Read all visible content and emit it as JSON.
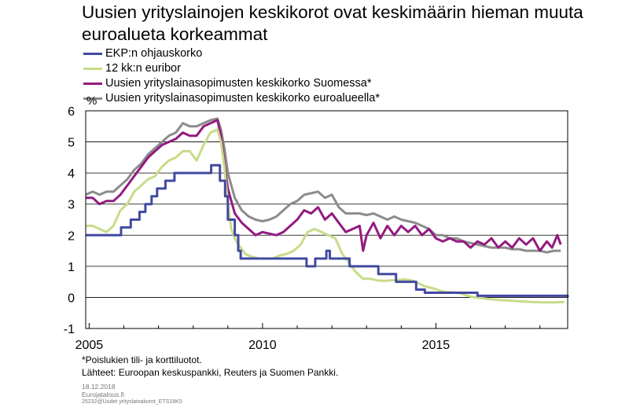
{
  "chart_data": {
    "type": "line",
    "title": "Uusien yrityslainojen keskikorot ovat keskimäärin hieman muuta euroalueta korkeammat",
    "ylabel": "%",
    "xlabel": "",
    "ylim": [
      -1,
      6
    ],
    "yticks": [
      "6",
      "5",
      "4",
      "3",
      "2",
      "1",
      "0",
      "-1"
    ],
    "xlim": [
      2004.9,
      2018.8
    ],
    "xticks": [
      "2005",
      "2010",
      "2015"
    ],
    "grid": "horizontal",
    "legend_position": "top-left",
    "series": [
      {
        "name": "EKP:n ohjauskorko",
        "color": "#414aa0",
        "step": true,
        "x": [
          2004.9,
          2005.92,
          2006.2,
          2006.45,
          2006.62,
          2006.8,
          2006.96,
          2007.2,
          2007.46,
          2008.52,
          2008.77,
          2008.92,
          2009.0,
          2009.2,
          2009.3,
          2009.37,
          2011.27,
          2011.52,
          2011.84,
          2011.94,
          2012.51,
          2013.34,
          2013.85,
          2014.43,
          2014.68,
          2016.2,
          2018.8
        ],
        "y": [
          2.0,
          2.25,
          2.5,
          2.75,
          3.0,
          3.25,
          3.5,
          3.75,
          4.0,
          4.25,
          3.75,
          3.25,
          2.5,
          2.0,
          1.5,
          1.25,
          1.0,
          1.25,
          1.5,
          1.25,
          1.0,
          0.75,
          0.5,
          0.25,
          0.15,
          0.05,
          0.0
        ]
      },
      {
        "name": "12 kk:n euribor",
        "color": "#c7dc8a",
        "x": [
          2004.9,
          2005.1,
          2005.3,
          2005.5,
          2005.7,
          2005.9,
          2006.1,
          2006.3,
          2006.5,
          2006.7,
          2006.9,
          2007.1,
          2007.3,
          2007.5,
          2007.7,
          2007.9,
          2008.1,
          2008.3,
          2008.5,
          2008.7,
          2008.8,
          2008.9,
          2009.0,
          2009.1,
          2009.2,
          2009.3,
          2009.5,
          2009.7,
          2009.9,
          2010.1,
          2010.3,
          2010.5,
          2010.7,
          2010.9,
          2011.1,
          2011.3,
          2011.5,
          2011.7,
          2011.9,
          2012.1,
          2012.3,
          2012.5,
          2012.7,
          2012.9,
          2013.1,
          2013.3,
          2013.5,
          2013.7,
          2013.9,
          2014.1,
          2014.3,
          2014.5,
          2014.7,
          2014.9,
          2015.1,
          2015.3,
          2015.5,
          2015.7,
          2015.9,
          2016.1,
          2016.3,
          2016.5,
          2016.7,
          2016.9,
          2017.2,
          2017.5,
          2017.8,
          2018.1,
          2018.4,
          2018.7
        ],
        "y": [
          2.3,
          2.3,
          2.2,
          2.1,
          2.3,
          2.8,
          3.0,
          3.4,
          3.6,
          3.8,
          3.9,
          4.2,
          4.4,
          4.5,
          4.7,
          4.7,
          4.4,
          4.9,
          5.3,
          5.4,
          5.0,
          4.2,
          3.0,
          2.2,
          1.9,
          1.7,
          1.4,
          1.3,
          1.25,
          1.25,
          1.25,
          1.35,
          1.4,
          1.5,
          1.7,
          2.1,
          2.2,
          2.1,
          2.0,
          1.9,
          1.4,
          1.1,
          0.8,
          0.6,
          0.6,
          0.55,
          0.53,
          0.55,
          0.56,
          0.58,
          0.55,
          0.45,
          0.35,
          0.3,
          0.22,
          0.17,
          0.16,
          0.13,
          0.06,
          0.0,
          -0.02,
          -0.05,
          -0.07,
          -0.09,
          -0.11,
          -0.13,
          -0.15,
          -0.16,
          -0.16,
          -0.15
        ]
      },
      {
        "name": "Uusien yrityslainasopimusten keskikorko Suomessa*",
        "color": "#931b7f",
        "x": [
          2004.9,
          2005.1,
          2005.3,
          2005.5,
          2005.7,
          2005.9,
          2006.1,
          2006.3,
          2006.5,
          2006.7,
          2006.9,
          2007.1,
          2007.3,
          2007.5,
          2007.7,
          2007.9,
          2008.1,
          2008.3,
          2008.5,
          2008.7,
          2008.8,
          2008.9,
          2009.0,
          2009.2,
          2009.4,
          2009.6,
          2009.8,
          2010.0,
          2010.2,
          2010.4,
          2010.6,
          2010.8,
          2011.0,
          2011.2,
          2011.4,
          2011.6,
          2011.8,
          2012.0,
          2012.2,
          2012.4,
          2012.6,
          2012.8,
          2012.9,
          2013.0,
          2013.2,
          2013.4,
          2013.6,
          2013.8,
          2014.0,
          2014.2,
          2014.4,
          2014.6,
          2014.8,
          2015.0,
          2015.2,
          2015.4,
          2015.6,
          2015.8,
          2016.0,
          2016.2,
          2016.4,
          2016.6,
          2016.8,
          2017.0,
          2017.2,
          2017.4,
          2017.6,
          2017.8,
          2018.0,
          2018.2,
          2018.35,
          2018.5,
          2018.6
        ],
        "y": [
          3.2,
          3.2,
          3.0,
          3.1,
          3.1,
          3.3,
          3.6,
          3.9,
          4.2,
          4.5,
          4.7,
          4.9,
          5.0,
          5.1,
          5.3,
          5.2,
          5.2,
          5.5,
          5.6,
          5.7,
          5.2,
          4.3,
          3.5,
          2.7,
          2.4,
          2.2,
          2.0,
          2.1,
          2.05,
          2.0,
          2.1,
          2.3,
          2.5,
          2.8,
          2.7,
          2.9,
          2.5,
          2.7,
          2.4,
          2.1,
          2.2,
          2.3,
          1.5,
          2.0,
          2.4,
          1.9,
          2.3,
          2.0,
          2.3,
          2.1,
          2.3,
          2.0,
          2.2,
          1.9,
          1.8,
          1.9,
          1.8,
          1.8,
          1.6,
          1.8,
          1.7,
          1.9,
          1.6,
          1.8,
          1.6,
          1.9,
          1.7,
          1.9,
          1.5,
          1.8,
          1.6,
          2.0,
          1.7
        ]
      },
      {
        "name": "Uusien yrityslainasopimusten keskikorko euroalueella*",
        "color": "#8c8c8c",
        "x": [
          2004.9,
          2005.1,
          2005.3,
          2005.5,
          2005.7,
          2005.9,
          2006.1,
          2006.3,
          2006.5,
          2006.7,
          2006.9,
          2007.1,
          2007.3,
          2007.5,
          2007.7,
          2007.9,
          2008.1,
          2008.3,
          2008.5,
          2008.7,
          2008.8,
          2008.9,
          2009.0,
          2009.2,
          2009.4,
          2009.6,
          2009.8,
          2010.0,
          2010.2,
          2010.4,
          2010.6,
          2010.8,
          2011.0,
          2011.2,
          2011.4,
          2011.6,
          2011.8,
          2012.0,
          2012.2,
          2012.4,
          2012.6,
          2012.8,
          2013.0,
          2013.2,
          2013.4,
          2013.6,
          2013.8,
          2014.0,
          2014.2,
          2014.4,
          2014.6,
          2014.8,
          2015.0,
          2015.2,
          2015.4,
          2015.6,
          2015.8,
          2016.0,
          2016.2,
          2016.4,
          2016.6,
          2016.8,
          2017.0,
          2017.2,
          2017.4,
          2017.6,
          2017.8,
          2018.0,
          2018.2,
          2018.4,
          2018.6
        ],
        "y": [
          3.3,
          3.4,
          3.3,
          3.4,
          3.4,
          3.6,
          3.8,
          4.1,
          4.3,
          4.6,
          4.8,
          5.0,
          5.2,
          5.3,
          5.6,
          5.5,
          5.5,
          5.6,
          5.7,
          5.75,
          5.4,
          4.8,
          4.0,
          3.2,
          2.8,
          2.6,
          2.5,
          2.45,
          2.5,
          2.6,
          2.8,
          3.0,
          3.1,
          3.3,
          3.35,
          3.4,
          3.2,
          3.3,
          2.9,
          2.7,
          2.7,
          2.7,
          2.65,
          2.7,
          2.6,
          2.5,
          2.6,
          2.5,
          2.45,
          2.4,
          2.3,
          2.2,
          2.0,
          2.0,
          1.9,
          1.9,
          1.8,
          1.75,
          1.7,
          1.65,
          1.6,
          1.6,
          1.6,
          1.55,
          1.55,
          1.5,
          1.5,
          1.5,
          1.45,
          1.5,
          1.5
        ]
      }
    ]
  },
  "notes": {
    "footnote": "*Poislukien tili- ja korttiluotot.",
    "sources": "Lähteet: Euroopan keskuspankki, Reuters ja Suomen Pankki."
  },
  "meta": {
    "date": "18.12.2018",
    "site": "Eurojatalous.fi",
    "code": "25232@Uudet yrityslainakorot_ETS18K5"
  }
}
